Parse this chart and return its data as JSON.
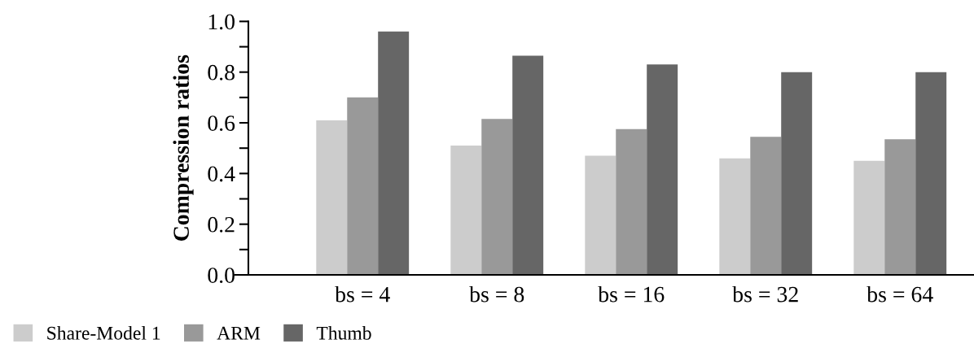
{
  "chart_data": {
    "type": "bar",
    "ylabel": "Compression ratios",
    "categories": [
      "bs = 4",
      "bs = 8",
      "bs = 16",
      "bs = 32",
      "bs = 64"
    ],
    "series": [
      {
        "name": "Share-Model 1",
        "color": "#cccccc",
        "values": [
          0.61,
          0.51,
          0.47,
          0.46,
          0.45
        ]
      },
      {
        "name": "ARM",
        "color": "#999999",
        "values": [
          0.7,
          0.615,
          0.575,
          0.545,
          0.535
        ]
      },
      {
        "name": "Thumb",
        "color": "#666666",
        "values": [
          0.96,
          0.865,
          0.83,
          0.8,
          0.8
        ]
      }
    ],
    "ylim": [
      0,
      1.0
    ],
    "yticks": [
      {
        "value": 0,
        "label": "0.0"
      },
      {
        "value": 0.1,
        "label": null
      },
      {
        "value": 0.2,
        "label": "0.2"
      },
      {
        "value": 0.3,
        "label": null
      },
      {
        "value": 0.4,
        "label": "0.4"
      },
      {
        "value": 0.5,
        "label": null
      },
      {
        "value": 0.6,
        "label": "0.6"
      },
      {
        "value": 0.7,
        "label": null
      },
      {
        "value": 0.8,
        "label": "0.8"
      },
      {
        "value": 0.9,
        "label": null
      },
      {
        "value": 1.0,
        "label": "1.0"
      }
    ],
    "grid": false,
    "legend": "bottom left"
  }
}
